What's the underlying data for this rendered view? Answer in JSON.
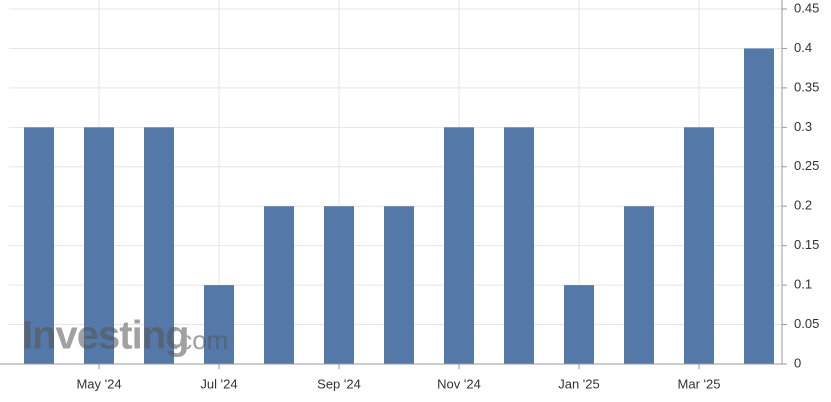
{
  "chart_data": {
    "type": "bar",
    "categories": [
      null,
      "May '24",
      null,
      "Jul '24",
      null,
      "Sep '24",
      null,
      "Nov '24",
      null,
      "Jan '25",
      null,
      "Mar '25",
      null
    ],
    "values": [
      0.3,
      0.3,
      0.3,
      0.1,
      0.2,
      0.2,
      0.2,
      0.3,
      0.3,
      0.1,
      0.2,
      0.3,
      0.4
    ],
    "color": "#5479a8",
    "ylim": [
      0,
      0.45
    ],
    "yticks": [
      0,
      0.05,
      0.1,
      0.15,
      0.2,
      0.25,
      0.3,
      0.35,
      0.4,
      0.45
    ],
    "grid": true,
    "watermark": {
      "brand": "Investing",
      "suffix": ".com"
    }
  }
}
